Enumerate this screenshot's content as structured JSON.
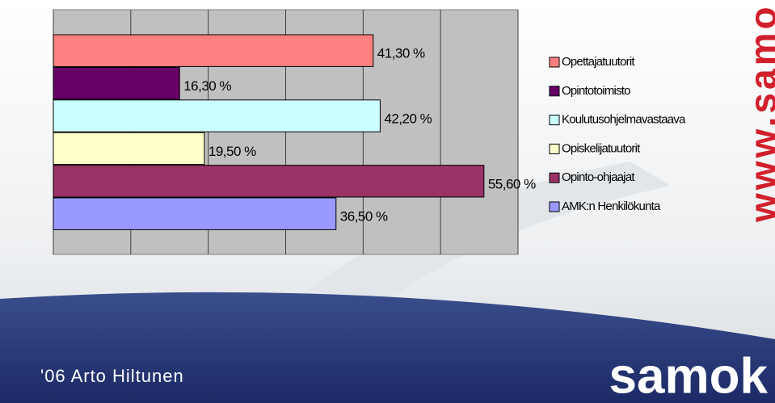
{
  "chart_data": {
    "type": "bar",
    "orientation": "horizontal",
    "categories": [
      "Opettajatuutorit",
      "Opintotoimisto",
      "Koulutusohjelmavastaava",
      "Opiskelijatuutorit",
      "Opinto-ohjaajat",
      "AMK:n Henkilökunta"
    ],
    "values": [
      41.3,
      16.3,
      42.2,
      19.5,
      55.6,
      36.5
    ],
    "value_labels": [
      "41,30 %",
      "16,30 %",
      "42,20 %",
      "19,50 %",
      "55,60 %",
      "36,50 %"
    ],
    "colors": [
      "#ff8080",
      "#660066",
      "#ccffff",
      "#ffffcc",
      "#993366",
      "#9999ff"
    ],
    "xlim": [
      0,
      60
    ],
    "xticks": [
      0,
      10,
      20,
      30,
      40,
      50,
      60
    ],
    "grid": true,
    "legend": "right"
  },
  "footer": {
    "author": "'06 Arto Hiltunen",
    "logo": "samok",
    "url": "www.samo"
  }
}
